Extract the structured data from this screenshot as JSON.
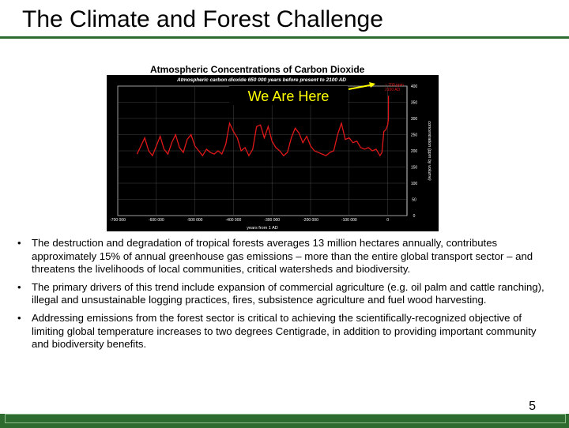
{
  "slide": {
    "title": "The Climate and Forest Challenge",
    "page_number": "5"
  },
  "chart": {
    "caption": "Atmospheric Concentrations of Carbon Dioxide",
    "inner_title": "Atmospheric carbon dioxide 650 000 years before present to 2100 AD",
    "annotation": "We Are Here",
    "legend_lines": [
      "~ 700 ppm",
      "2100 AD"
    ],
    "colors": {
      "background": "#000000",
      "grid": "#555555",
      "series": "#e01818",
      "frame": "#ffffff",
      "annotation": "#ffff00"
    }
  },
  "chart_data": {
    "type": "line",
    "title": "Atmospheric carbon dioxide 650 000 years before present to 2100 AD",
    "xlabel": "years from 1 AD",
    "ylabel": "concentration (ppm by volume)",
    "xlim": [
      -700000,
      50000
    ],
    "ylim": [
      0,
      400
    ],
    "x_tick_labels": [
      "-700 000",
      "-600 000",
      "-500 000",
      "-400 000",
      "-300 000",
      "-200 000",
      "-100 000",
      "0"
    ],
    "x_ticks": [
      -700000,
      -600000,
      -500000,
      -400000,
      -300000,
      -200000,
      -100000,
      0
    ],
    "y_tick_labels": [
      "400",
      "350",
      "300",
      "250",
      "200",
      "150",
      "100",
      "50",
      "0"
    ],
    "y_ticks": [
      400,
      350,
      300,
      250,
      200,
      150,
      100,
      50,
      0
    ],
    "grid": true,
    "series": [
      {
        "values": [
          [
            -650000,
            190
          ],
          [
            -640000,
            215
          ],
          [
            -630000,
            240
          ],
          [
            -620000,
            200
          ],
          [
            -610000,
            185
          ],
          [
            -600000,
            215
          ],
          [
            -590000,
            245
          ],
          [
            -580000,
            205
          ],
          [
            -570000,
            190
          ],
          [
            -560000,
            225
          ],
          [
            -550000,
            250
          ],
          [
            -540000,
            210
          ],
          [
            -530000,
            195
          ],
          [
            -520000,
            235
          ],
          [
            -510000,
            250
          ],
          [
            -500000,
            215
          ],
          [
            -490000,
            200
          ],
          [
            -480000,
            185
          ],
          [
            -470000,
            205
          ],
          [
            -460000,
            195
          ],
          [
            -450000,
            190
          ],
          [
            -440000,
            200
          ],
          [
            -430000,
            190
          ],
          [
            -420000,
            220
          ],
          [
            -410000,
            285
          ],
          [
            -400000,
            260
          ],
          [
            -390000,
            240
          ],
          [
            -380000,
            200
          ],
          [
            -370000,
            210
          ],
          [
            -360000,
            185
          ],
          [
            -350000,
            205
          ],
          [
            -340000,
            275
          ],
          [
            -330000,
            280
          ],
          [
            -320000,
            240
          ],
          [
            -310000,
            275
          ],
          [
            -300000,
            230
          ],
          [
            -290000,
            210
          ],
          [
            -280000,
            200
          ],
          [
            -270000,
            185
          ],
          [
            -260000,
            195
          ],
          [
            -250000,
            240
          ],
          [
            -240000,
            270
          ],
          [
            -230000,
            255
          ],
          [
            -220000,
            225
          ],
          [
            -210000,
            245
          ],
          [
            -200000,
            215
          ],
          [
            -190000,
            200
          ],
          [
            -180000,
            195
          ],
          [
            -170000,
            190
          ],
          [
            -160000,
            185
          ],
          [
            -150000,
            195
          ],
          [
            -140000,
            200
          ],
          [
            -130000,
            250
          ],
          [
            -120000,
            285
          ],
          [
            -110000,
            235
          ],
          [
            -100000,
            240
          ],
          [
            -90000,
            225
          ],
          [
            -80000,
            230
          ],
          [
            -70000,
            210
          ],
          [
            -60000,
            205
          ],
          [
            -50000,
            210
          ],
          [
            -40000,
            200
          ],
          [
            -30000,
            205
          ],
          [
            -20000,
            185
          ],
          [
            -15000,
            195
          ],
          [
            -10000,
            260
          ],
          [
            -5000,
            265
          ],
          [
            0,
            280
          ],
          [
            1900,
            300
          ],
          [
            2000,
            370
          ]
        ]
      }
    ]
  },
  "bullets": [
    "The destruction and degradation of tropical forests averages 13 million hectares annually, contributes approximately 15% of annual greenhouse gas emissions – more than the entire global transport sector – and threatens the livelihoods of local communities, critical watersheds and biodiversity.",
    "The primary drivers of this trend include expansion of commercial agriculture (e.g. oil palm and cattle ranching), illegal and unsustainable logging practices, fires, subsistence agriculture and fuel wood harvesting.",
    "Addressing emissions from the forest sector is critical to achieving the scientifically-recognized objective of limiting global temperature increases to two degrees Centigrade, in addition to providing important community and biodiversity benefits."
  ],
  "bullet_symbol": "•"
}
